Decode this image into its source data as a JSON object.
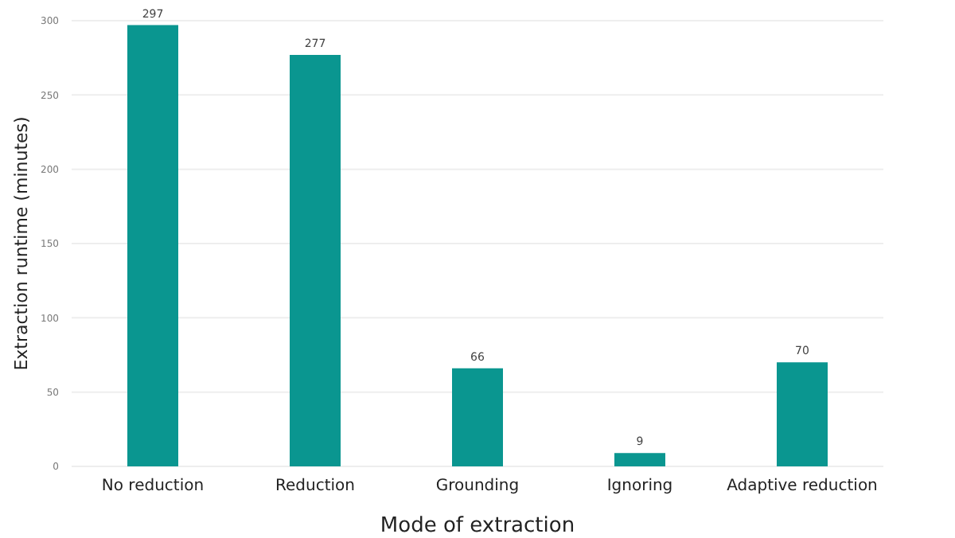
{
  "chart_data": {
    "type": "bar",
    "xlabel": "Mode of extraction",
    "ylabel": "Extraction runtime (minutes)",
    "categories": [
      "No reduction",
      "Reduction",
      "Grounding",
      "Ignoring",
      "Adaptive reduction"
    ],
    "values": [
      297,
      277,
      66,
      9,
      70
    ],
    "color": "#0a9690",
    "ylim": [
      0,
      300
    ],
    "yticks": [
      0,
      50,
      100,
      150,
      200,
      250,
      300
    ],
    "grid": "y",
    "data_labels": true
  }
}
